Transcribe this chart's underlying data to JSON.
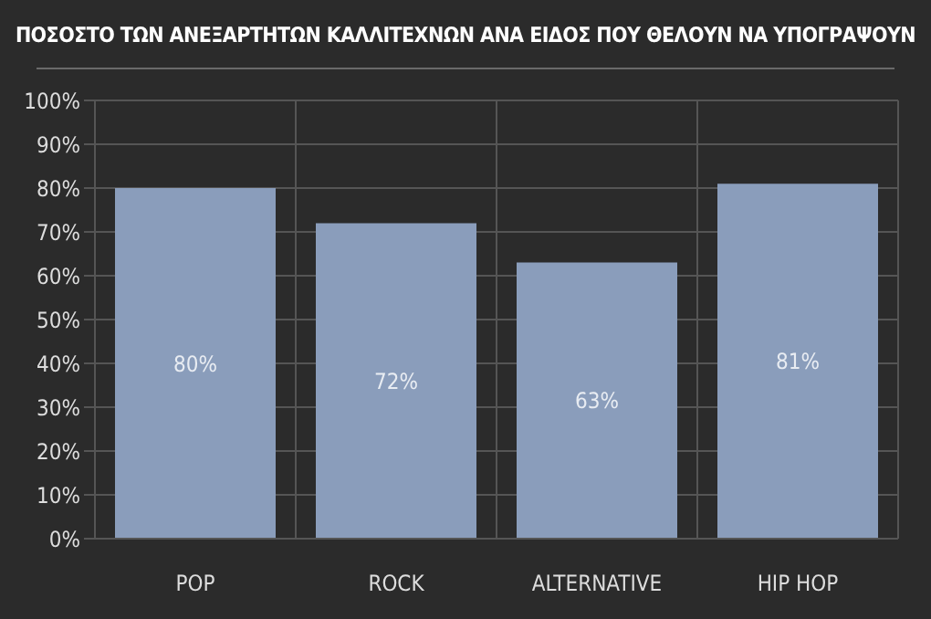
{
  "chart_data": {
    "type": "bar",
    "title": "ΠΟΣΟΣΤΟ ΤΩΝ ΑΝΕΞΑΡΤΗΤΩΝ ΚΑΛΛΙΤΕΧΝΩΝ ΑΝΑ ΕΙΔΟΣ ΠΟΥ ΘΕΛΟΥΝ ΝΑ ΥΠΟΓΡΑΨΟΥΝ",
    "categories": [
      "POP",
      "ROCK",
      "ALTERNATIVE",
      "HIP HOP"
    ],
    "values": [
      80,
      72,
      63,
      81
    ],
    "value_labels": [
      "80%",
      "72%",
      "63%",
      "81%"
    ],
    "color": "#8a9dbb",
    "ylim": [
      0,
      100
    ],
    "yticks": [
      {
        "value": 0,
        "label": "0%"
      },
      {
        "value": 10,
        "label": "10%"
      },
      {
        "value": 20,
        "label": "20%"
      },
      {
        "value": 30,
        "label": "30%"
      },
      {
        "value": 40,
        "label": "40%"
      },
      {
        "value": 50,
        "label": "50%"
      },
      {
        "value": 60,
        "label": "60%"
      },
      {
        "value": 70,
        "label": "70%"
      },
      {
        "value": 80,
        "label": "80%"
      },
      {
        "value": 90,
        "label": "90%"
      },
      {
        "value": 100,
        "label": "100%"
      }
    ],
    "grid": true
  }
}
